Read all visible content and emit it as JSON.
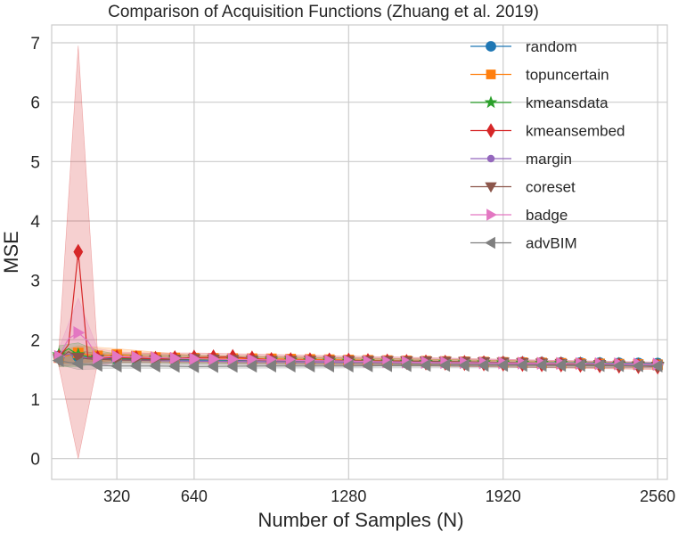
{
  "chart_data": {
    "type": "line",
    "title": "Comparison of Acquisition Functions (Zhuang et al. 2019)",
    "xlabel": "Number of Samples (N)",
    "ylabel": "MSE",
    "xlim": [
      50,
      2600
    ],
    "ylim": [
      -0.35,
      7.3
    ],
    "xticks": [
      320,
      640,
      1280,
      1920,
      2560
    ],
    "yticks": [
      0,
      1,
      2,
      3,
      4,
      5,
      6,
      7
    ],
    "grid": true,
    "legend_position": "top-right",
    "series": [
      {
        "name": "random",
        "color": "#1f77b4",
        "marker": "circle",
        "points": [
          [
            80,
            1.72
          ],
          [
            120,
            1.75
          ],
          [
            160,
            1.72
          ],
          [
            200,
            1.7
          ],
          [
            240,
            1.69
          ],
          [
            320,
            1.68
          ],
          [
            480,
            1.67
          ],
          [
            640,
            1.66
          ],
          [
            960,
            1.65
          ],
          [
            1280,
            1.64
          ],
          [
            1600,
            1.63
          ],
          [
            1920,
            1.62
          ],
          [
            2240,
            1.61
          ],
          [
            2560,
            1.6
          ]
        ]
      },
      {
        "name": "topuncertain",
        "color": "#ff7f0e",
        "marker": "square",
        "points": [
          [
            80,
            1.7
          ],
          [
            120,
            1.74
          ],
          [
            160,
            1.78
          ],
          [
            200,
            1.75
          ],
          [
            240,
            1.73
          ],
          [
            320,
            1.75
          ],
          [
            480,
            1.7
          ],
          [
            640,
            1.69
          ],
          [
            960,
            1.68
          ],
          [
            1280,
            1.66
          ],
          [
            1600,
            1.64
          ],
          [
            1920,
            1.62
          ],
          [
            2240,
            1.6
          ],
          [
            2560,
            1.58
          ]
        ]
      },
      {
        "name": "kmeansdata",
        "color": "#2ca02c",
        "marker": "star",
        "points": [
          [
            80,
            1.75
          ],
          [
            120,
            1.85
          ],
          [
            160,
            1.75
          ],
          [
            200,
            1.72
          ],
          [
            240,
            1.7
          ],
          [
            320,
            1.69
          ],
          [
            480,
            1.68
          ],
          [
            640,
            1.67
          ],
          [
            960,
            1.66
          ],
          [
            1280,
            1.64
          ],
          [
            1600,
            1.62
          ],
          [
            1920,
            1.61
          ],
          [
            2240,
            1.6
          ],
          [
            2560,
            1.58
          ]
        ]
      },
      {
        "name": "kmeansembed",
        "color": "#d62728",
        "marker": "diamond",
        "points": [
          [
            80,
            1.7
          ],
          [
            120,
            1.92
          ],
          [
            160,
            3.48
          ],
          [
            200,
            1.7
          ],
          [
            240,
            1.69
          ],
          [
            320,
            1.7
          ],
          [
            480,
            1.68
          ],
          [
            640,
            1.7
          ],
          [
            800,
            1.71
          ],
          [
            960,
            1.66
          ],
          [
            1280,
            1.65
          ],
          [
            1600,
            1.62
          ],
          [
            1920,
            1.6
          ],
          [
            2240,
            1.58
          ],
          [
            2560,
            1.55
          ]
        ]
      },
      {
        "name": "margin",
        "color": "#9467bd",
        "marker": "circle",
        "points": [
          [
            80,
            1.71
          ],
          [
            120,
            1.76
          ],
          [
            160,
            1.72
          ],
          [
            200,
            1.69
          ],
          [
            240,
            1.68
          ],
          [
            320,
            1.66
          ],
          [
            480,
            1.65
          ],
          [
            640,
            1.64
          ],
          [
            960,
            1.63
          ],
          [
            1280,
            1.62
          ],
          [
            1600,
            1.61
          ],
          [
            1920,
            1.6
          ],
          [
            2240,
            1.59
          ],
          [
            2560,
            1.58
          ]
        ]
      },
      {
        "name": "coreset",
        "color": "#8c564b",
        "marker": "triangle-down",
        "points": [
          [
            80,
            1.68
          ],
          [
            120,
            1.8
          ],
          [
            160,
            1.7
          ],
          [
            200,
            1.68
          ],
          [
            240,
            1.67
          ],
          [
            320,
            1.66
          ],
          [
            480,
            1.66
          ],
          [
            640,
            1.68
          ],
          [
            960,
            1.65
          ],
          [
            1280,
            1.65
          ],
          [
            1600,
            1.64
          ],
          [
            1920,
            1.62
          ],
          [
            2240,
            1.59
          ],
          [
            2560,
            1.55
          ]
        ]
      },
      {
        "name": "badge",
        "color": "#e377c2",
        "marker": "triangle-right",
        "points": [
          [
            80,
            1.72
          ],
          [
            120,
            2.02
          ],
          [
            160,
            2.12
          ],
          [
            200,
            1.98
          ],
          [
            240,
            1.7
          ],
          [
            320,
            1.72
          ],
          [
            480,
            1.7
          ],
          [
            640,
            1.68
          ],
          [
            960,
            1.66
          ],
          [
            1280,
            1.64
          ],
          [
            1600,
            1.62
          ],
          [
            1920,
            1.61
          ],
          [
            2240,
            1.6
          ],
          [
            2560,
            1.59
          ]
        ]
      },
      {
        "name": "advBIM",
        "color": "#7f7f7f",
        "marker": "triangle-left",
        "points": [
          [
            80,
            1.65
          ],
          [
            120,
            1.62
          ],
          [
            160,
            1.6
          ],
          [
            200,
            1.58
          ],
          [
            240,
            1.57
          ],
          [
            320,
            1.56
          ],
          [
            480,
            1.56
          ],
          [
            640,
            1.55
          ],
          [
            960,
            1.56
          ],
          [
            1280,
            1.56
          ],
          [
            1600,
            1.57
          ],
          [
            1920,
            1.57
          ],
          [
            2240,
            1.57
          ],
          [
            2560,
            1.56
          ]
        ]
      }
    ],
    "bands": [
      {
        "series": "kmeansembed",
        "color": "#d62728",
        "points": [
          [
            80,
            1.55,
            1.85
          ],
          [
            120,
            1.4,
            2.5
          ],
          [
            160,
            0.0,
            6.95
          ],
          [
            200,
            1.5,
            1.9
          ],
          [
            240,
            1.6,
            1.78
          ],
          [
            320,
            1.62,
            1.78
          ],
          [
            640,
            1.62,
            1.78
          ],
          [
            2560,
            1.5,
            1.62
          ]
        ]
      },
      {
        "series": "badge",
        "color": "#e377c2",
        "points": [
          [
            80,
            1.6,
            1.85
          ],
          [
            120,
            1.6,
            2.5
          ],
          [
            160,
            1.6,
            2.7
          ],
          [
            200,
            1.5,
            2.6
          ],
          [
            240,
            1.55,
            1.85
          ],
          [
            320,
            1.62,
            1.8
          ],
          [
            640,
            1.62,
            1.74
          ],
          [
            2560,
            1.55,
            1.63
          ]
        ]
      },
      {
        "series": "kmeansdata",
        "color": "#2ca02c",
        "points": [
          [
            80,
            1.55,
            1.9
          ],
          [
            120,
            1.5,
            2.65
          ],
          [
            160,
            1.55,
            1.95
          ],
          [
            200,
            1.6,
            1.85
          ],
          [
            320,
            1.62,
            1.76
          ],
          [
            2560,
            1.55,
            1.61
          ]
        ]
      },
      {
        "series": "topuncertain",
        "color": "#ff7f0e",
        "points": [
          [
            80,
            1.6,
            1.8
          ],
          [
            120,
            1.6,
            1.9
          ],
          [
            160,
            1.62,
            1.9
          ],
          [
            320,
            1.65,
            1.85
          ],
          [
            640,
            1.64,
            1.74
          ],
          [
            2560,
            1.55,
            1.61
          ]
        ]
      },
      {
        "series": "coreset",
        "color": "#8c564b",
        "points": [
          [
            80,
            1.55,
            1.8
          ],
          [
            120,
            1.6,
            2.05
          ],
          [
            160,
            1.58,
            1.82
          ],
          [
            320,
            1.6,
            1.72
          ],
          [
            2560,
            1.52,
            1.58
          ]
        ]
      },
      {
        "series": "advBIM",
        "color": "#7f7f7f",
        "points": [
          [
            80,
            1.58,
            1.75
          ],
          [
            160,
            1.5,
            1.7
          ],
          [
            320,
            1.52,
            1.6
          ],
          [
            2560,
            1.53,
            1.59
          ]
        ]
      }
    ]
  }
}
